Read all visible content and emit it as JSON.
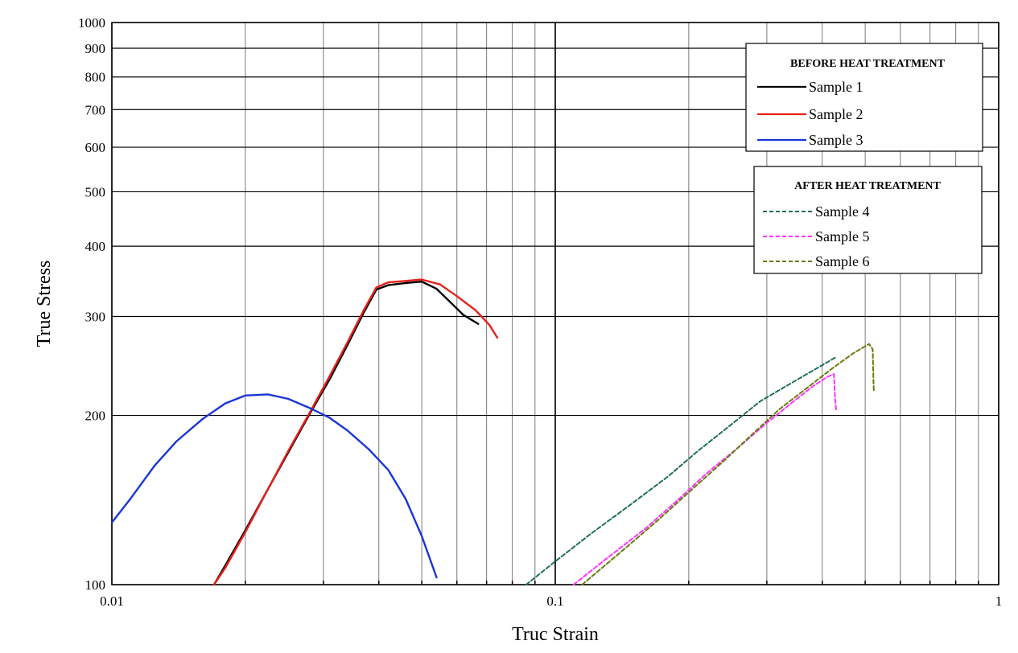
{
  "chart_data": {
    "type": "line",
    "xlabel": "Truc Strain",
    "ylabel": "True Stress",
    "xscale": "log",
    "yscale": "log",
    "xlim": [
      0.01,
      1
    ],
    "ylim": [
      100,
      1000
    ],
    "grid": true,
    "x_tick_labels": [
      "0.01",
      "0.1",
      "1"
    ],
    "y_tick_labels": [
      "100",
      "200",
      "300",
      "400",
      "500",
      "600",
      "700",
      "800",
      "900",
      "1000"
    ],
    "legend_groups": [
      {
        "title": "BEFORE HEAT TREATMENT",
        "placement": "top-right",
        "entries": [
          "Sample 1",
          "Sample 2",
          "Sample 3"
        ]
      },
      {
        "title": "AFTER HEAT TREATMENT",
        "placement": "right",
        "entries": [
          "Sample 4",
          "Sample 5",
          "Sample 6"
        ]
      }
    ],
    "series": [
      {
        "name": "Sample 1",
        "color": "#000000",
        "style": "solid",
        "points": [
          [
            0.017,
            100
          ],
          [
            0.018,
            108
          ],
          [
            0.02,
            125
          ],
          [
            0.0225,
            148
          ],
          [
            0.025,
            172
          ],
          [
            0.028,
            202
          ],
          [
            0.031,
            232
          ],
          [
            0.034,
            267
          ],
          [
            0.037,
            305
          ],
          [
            0.0395,
            335
          ],
          [
            0.042,
            341
          ],
          [
            0.046,
            344
          ],
          [
            0.05,
            346
          ],
          [
            0.054,
            336
          ],
          [
            0.058,
            318
          ],
          [
            0.062,
            302
          ],
          [
            0.067,
            291
          ]
        ]
      },
      {
        "name": "Sample 2",
        "color": "#e8201a",
        "style": "solid",
        "points": [
          [
            0.017,
            100
          ],
          [
            0.018,
            107
          ],
          [
            0.02,
            124
          ],
          [
            0.0225,
            148
          ],
          [
            0.025,
            173
          ],
          [
            0.028,
            203
          ],
          [
            0.031,
            235
          ],
          [
            0.034,
            270
          ],
          [
            0.037,
            308
          ],
          [
            0.0395,
            338
          ],
          [
            0.042,
            345
          ],
          [
            0.046,
            347
          ],
          [
            0.05,
            349
          ],
          [
            0.055,
            342
          ],
          [
            0.06,
            326
          ],
          [
            0.066,
            308
          ],
          [
            0.071,
            290
          ],
          [
            0.074,
            275
          ]
        ]
      },
      {
        "name": "Sample 3",
        "color": "#1a35d6",
        "style": "solid",
        "points": [
          [
            0.01,
            129
          ],
          [
            0.011,
            142
          ],
          [
            0.0125,
            163
          ],
          [
            0.014,
            180
          ],
          [
            0.016,
            197
          ],
          [
            0.018,
            210
          ],
          [
            0.02,
            217
          ],
          [
            0.0225,
            218
          ],
          [
            0.025,
            214
          ],
          [
            0.028,
            206
          ],
          [
            0.031,
            198
          ],
          [
            0.034,
            188
          ],
          [
            0.038,
            174
          ],
          [
            0.042,
            160
          ],
          [
            0.046,
            142
          ],
          [
            0.05,
            122
          ],
          [
            0.054,
            103
          ]
        ]
      },
      {
        "name": "Sample 4",
        "color": "#1e6e5a",
        "style": "dashed",
        "points": [
          [
            0.086,
            100
          ],
          [
            0.1,
            110
          ],
          [
            0.12,
            123
          ],
          [
            0.15,
            140
          ],
          [
            0.18,
            156
          ],
          [
            0.21,
            173
          ],
          [
            0.25,
            193
          ],
          [
            0.29,
            212
          ],
          [
            0.33,
            225
          ],
          [
            0.38,
            240
          ],
          [
            0.43,
            254
          ]
        ]
      },
      {
        "name": "Sample 5",
        "color": "#ff33ff",
        "style": "dashed",
        "points": [
          [
            0.11,
            100
          ],
          [
            0.13,
            111
          ],
          [
            0.16,
            126
          ],
          [
            0.19,
            142
          ],
          [
            0.22,
            158
          ],
          [
            0.26,
            176
          ],
          [
            0.3,
            194
          ],
          [
            0.34,
            210
          ],
          [
            0.38,
            225
          ],
          [
            0.41,
            234
          ],
          [
            0.425,
            237
          ],
          [
            0.428,
            212
          ],
          [
            0.43,
            205
          ]
        ]
      },
      {
        "name": "Sample 6",
        "color": "#6a7a10",
        "style": "dashed",
        "points": [
          [
            0.115,
            100
          ],
          [
            0.14,
            114
          ],
          [
            0.17,
            130
          ],
          [
            0.2,
            146
          ],
          [
            0.24,
            166
          ],
          [
            0.28,
            186
          ],
          [
            0.32,
            205
          ],
          [
            0.37,
            224
          ],
          [
            0.42,
            242
          ],
          [
            0.47,
            258
          ],
          [
            0.51,
            268
          ],
          [
            0.52,
            262
          ],
          [
            0.522,
            230
          ],
          [
            0.523,
            220
          ]
        ]
      }
    ]
  }
}
